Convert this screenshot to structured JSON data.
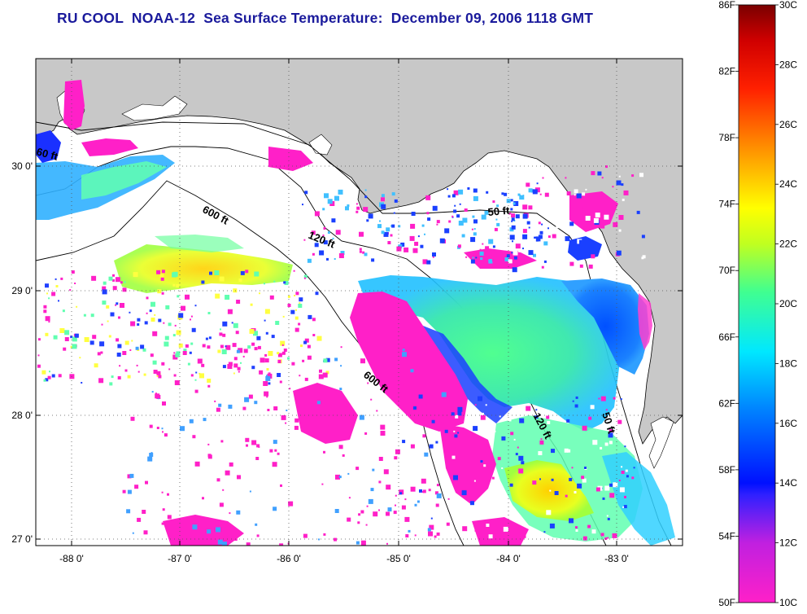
{
  "title": "RU COOL  NOAA-12  Sea Surface Temperature:  December 09, 2006 1118 GMT",
  "axes": {
    "lat_labels": [
      "30 0'",
      "29 0'",
      "28 0'",
      "27 0'"
    ],
    "lon_labels": [
      "-88 0'",
      "-87 0'",
      "-86 0'",
      "-85 0'",
      "-84 0'",
      "-83 0'"
    ]
  },
  "contours": {
    "label_600a": "600 ft",
    "label_600b": "600 ft",
    "label_120a": "120 ft",
    "label_120b": "120 ft",
    "label_50a": "50 ft",
    "label_50b": "50 ft",
    "label_60": "60 ft"
  },
  "colorbar": {
    "f_labels": [
      "86F",
      "82F",
      "78F",
      "74F",
      "70F",
      "66F",
      "62F",
      "58F",
      "54F",
      "50F"
    ],
    "c_labels": [
      "30C",
      "28C",
      "26C",
      "24C",
      "22C",
      "20C",
      "18C",
      "16C",
      "14C",
      "12C",
      "10C"
    ],
    "colors": {
      "top": "#7a0000",
      "red": "#ff0000",
      "orange": "#ff8a00",
      "yellow": "#ffff00",
      "green": "#5cff40",
      "cyan": "#00e8ff",
      "blue": "#0030ff",
      "purple": "#8a20ff",
      "magenta": "#ff20c8"
    }
  },
  "colors": {
    "land": "#c8c8c8",
    "no_data": "#ffffff",
    "title": "#1a1a9c"
  }
}
